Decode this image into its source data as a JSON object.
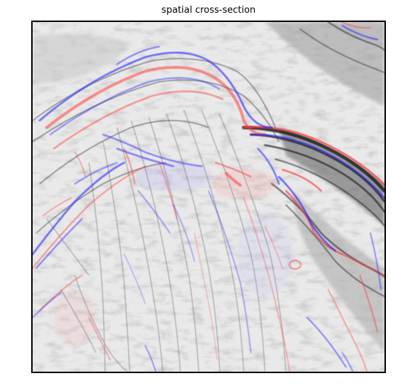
{
  "figure": {
    "title": "spatial cross-section"
  },
  "palette": {
    "background": "#f2f2f2",
    "dark_reflector": "#2a2a2a",
    "mid_gray": "#8a8a8a",
    "positive_red": "#ff4040",
    "negative_blue": "#2a2aff",
    "frame": "#000000"
  },
  "image": {
    "description_icon": "seismic-section-image"
  }
}
